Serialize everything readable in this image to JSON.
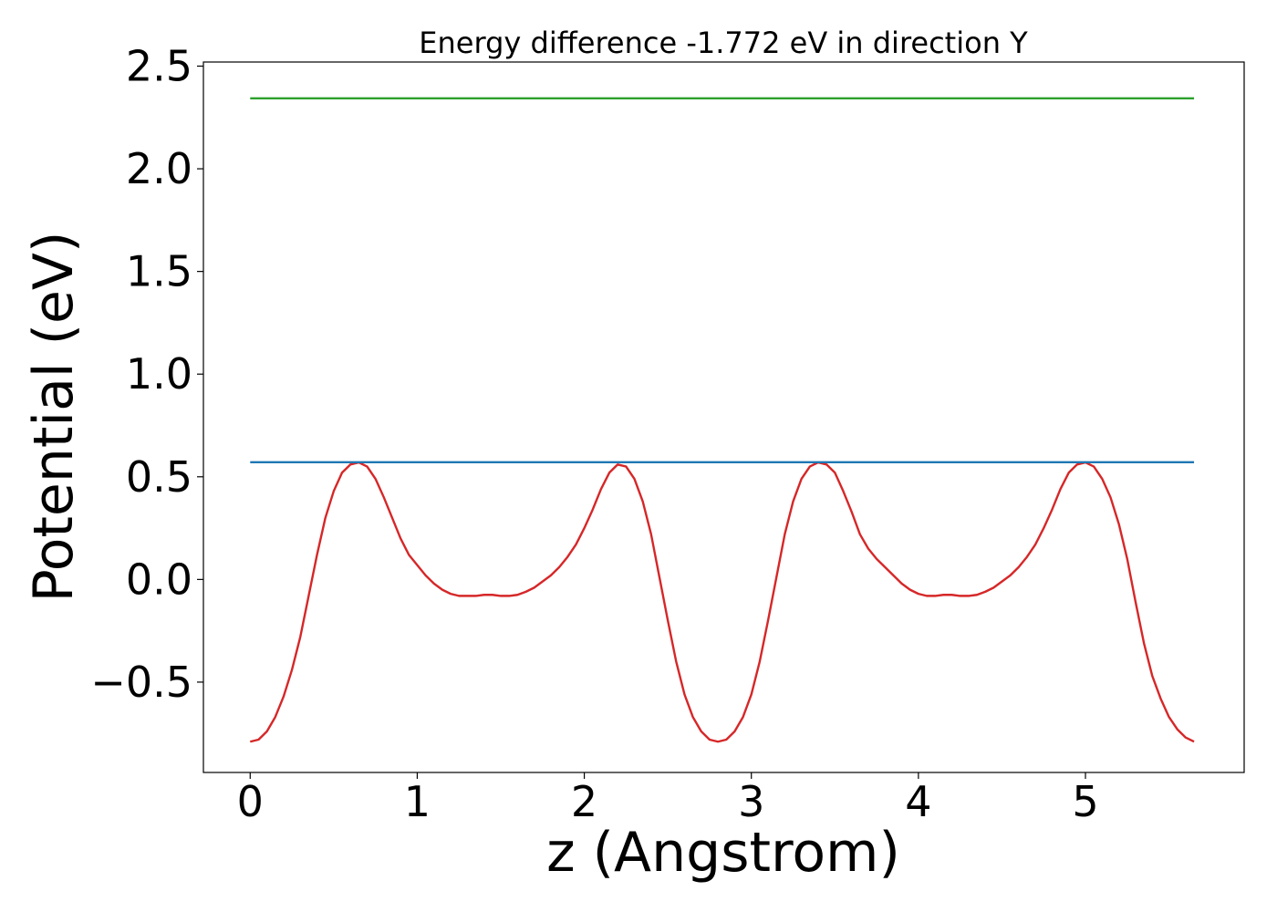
{
  "chart_data": {
    "type": "line",
    "title": "Energy difference -1.772 eV in direction Y",
    "xlabel": "z (Angstrom)",
    "ylabel": "Potential (eV)",
    "xlim": [
      -0.28,
      5.95
    ],
    "ylim": [
      -0.94,
      2.52
    ],
    "x_ticks": [
      0,
      1,
      2,
      3,
      4,
      5
    ],
    "x_tick_labels": [
      "0",
      "1",
      "2",
      "3",
      "4",
      "5"
    ],
    "y_ticks": [
      -0.5,
      0.0,
      0.5,
      1.0,
      1.5,
      2.0,
      2.5
    ],
    "y_tick_labels": [
      "−0.5",
      "0.0",
      "0.5",
      "1.0",
      "1.5",
      "2.0",
      "2.5"
    ],
    "grid": false,
    "series": [
      {
        "color": "#d62728",
        "x": [
          0.0,
          0.05,
          0.1,
          0.15,
          0.2,
          0.25,
          0.3,
          0.35,
          0.4,
          0.45,
          0.5,
          0.55,
          0.6,
          0.65,
          0.7,
          0.75,
          0.8,
          0.85,
          0.9,
          0.95,
          1.0,
          1.05,
          1.1,
          1.15,
          1.2,
          1.25,
          1.3,
          1.35,
          1.4,
          1.45,
          1.5,
          1.55,
          1.6,
          1.65,
          1.7,
          1.75,
          1.8,
          1.85,
          1.9,
          1.95,
          2.0,
          2.05,
          2.1,
          2.15,
          2.2,
          2.25,
          2.3,
          2.35,
          2.4,
          2.45,
          2.5,
          2.55,
          2.6,
          2.65,
          2.7,
          2.75,
          2.8,
          2.85,
          2.9,
          2.95,
          3.0,
          3.05,
          3.1,
          3.15,
          3.2,
          3.25,
          3.3,
          3.35,
          3.4,
          3.45,
          3.5,
          3.55,
          3.6,
          3.65,
          3.7,
          3.75,
          3.8,
          3.85,
          3.9,
          3.95,
          4.0,
          4.05,
          4.1,
          4.15,
          4.2,
          4.25,
          4.3,
          4.35,
          4.4,
          4.45,
          4.5,
          4.55,
          4.6,
          4.65,
          4.7,
          4.75,
          4.8,
          4.85,
          4.9,
          4.95,
          5.0,
          5.05,
          5.1,
          5.15,
          5.2,
          5.25,
          5.3,
          5.35,
          5.4,
          5.45,
          5.5,
          5.55,
          5.6,
          5.65
        ],
        "y": [
          -0.79,
          -0.78,
          -0.74,
          -0.67,
          -0.57,
          -0.44,
          -0.28,
          -0.08,
          0.12,
          0.3,
          0.43,
          0.52,
          0.56,
          0.57,
          0.55,
          0.49,
          0.4,
          0.3,
          0.2,
          0.12,
          0.07,
          0.02,
          -0.02,
          -0.05,
          -0.07,
          -0.08,
          -0.08,
          -0.08,
          -0.075,
          -0.075,
          -0.08,
          -0.08,
          -0.075,
          -0.06,
          -0.04,
          -0.01,
          0.02,
          0.06,
          0.11,
          0.17,
          0.25,
          0.34,
          0.44,
          0.52,
          0.56,
          0.55,
          0.49,
          0.38,
          0.22,
          0.01,
          -0.2,
          -0.4,
          -0.56,
          -0.67,
          -0.74,
          -0.78,
          -0.79,
          -0.78,
          -0.74,
          -0.67,
          -0.56,
          -0.4,
          -0.2,
          0.01,
          0.22,
          0.38,
          0.49,
          0.55,
          0.57,
          0.56,
          0.52,
          0.43,
          0.33,
          0.22,
          0.15,
          0.1,
          0.06,
          0.02,
          -0.02,
          -0.05,
          -0.07,
          -0.08,
          -0.08,
          -0.075,
          -0.075,
          -0.08,
          -0.08,
          -0.075,
          -0.06,
          -0.04,
          -0.01,
          0.02,
          0.06,
          0.11,
          0.17,
          0.25,
          0.34,
          0.44,
          0.52,
          0.56,
          0.57,
          0.55,
          0.49,
          0.4,
          0.27,
          0.1,
          -0.11,
          -0.31,
          -0.47,
          -0.58,
          -0.67,
          -0.73,
          -0.77,
          -0.79
        ]
      },
      {
        "color": "#1f77b4",
        "x": [
          0.0,
          5.65
        ],
        "y": [
          0.571,
          0.571
        ]
      },
      {
        "color": "#2ca02c",
        "x": [
          0.0,
          5.65
        ],
        "y": [
          2.343,
          2.343
        ]
      }
    ]
  }
}
